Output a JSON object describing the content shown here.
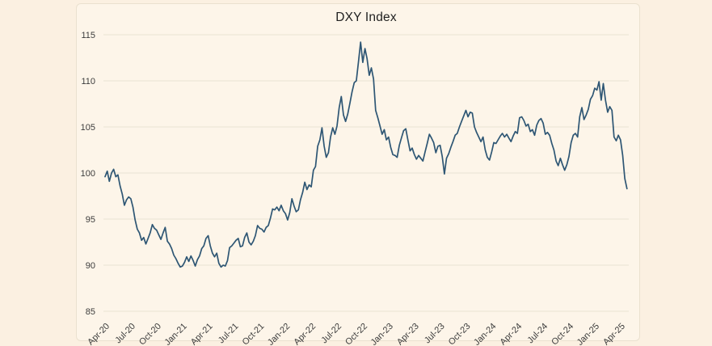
{
  "page": {
    "background_color": "#fbf0e1"
  },
  "card": {
    "background_color": "#fdf5e9",
    "border_color": "#eae1cf"
  },
  "chart_data": {
    "type": "line",
    "title": "DXY Index",
    "xlabel": "",
    "ylabel": "",
    "legend": "none",
    "grid": "horizontal-only",
    "gridline_color": "#e9e2d3",
    "tick_label_color": "#3c3c3c",
    "y_ticks": [
      85,
      90,
      95,
      100,
      105,
      110,
      115
    ],
    "ylim": [
      84.5,
      116.5
    ],
    "x_tick_labels": [
      "Apr-20",
      "Jul-20",
      "Oct-20",
      "Jan-21",
      "Apr-21",
      "Jul-21",
      "Oct-21",
      "Jan-22",
      "Apr-22",
      "Jul-22",
      "Oct-22",
      "Jan-23",
      "Apr-23",
      "Jul-23",
      "Oct-23",
      "Jan-24",
      "Apr-24",
      "Jul-24",
      "Oct-24",
      "Jan-25",
      "Apr-25"
    ],
    "x_tick_interval_months": 3,
    "series": [
      {
        "name": "DXY Index",
        "color": "#2e5674",
        "start": "Apr-2020",
        "end": "Apr-2025",
        "points_per_month": 4,
        "values": [
          99.6,
          100.2,
          99.1,
          100.0,
          100.4,
          99.6,
          99.8,
          98.6,
          97.7,
          96.5,
          97.1,
          97.4,
          97.2,
          96.3,
          94.9,
          93.9,
          93.5,
          92.7,
          93.0,
          92.3,
          92.9,
          93.5,
          94.4,
          94.0,
          93.8,
          93.3,
          92.8,
          93.5,
          94.1,
          92.6,
          92.3,
          91.8,
          91.1,
          90.7,
          90.2,
          89.8,
          89.9,
          90.3,
          90.9,
          90.4,
          91.0,
          90.5,
          89.9,
          90.6,
          91.0,
          91.8,
          92.1,
          92.9,
          93.2,
          92.1,
          91.3,
          90.9,
          91.3,
          90.2,
          89.8,
          90.0,
          89.9,
          90.5,
          91.9,
          92.1,
          92.4,
          92.7,
          92.9,
          92.0,
          92.1,
          93.0,
          93.5,
          92.5,
          92.2,
          92.6,
          93.2,
          94.3,
          94.0,
          93.9,
          93.6,
          94.1,
          94.3,
          95.1,
          96.1,
          96.0,
          96.3,
          95.9,
          96.5,
          95.9,
          95.6,
          94.9,
          95.7,
          97.2,
          96.4,
          95.8,
          96.0,
          97.1,
          97.9,
          99.0,
          98.2,
          98.7,
          98.5,
          100.3,
          100.7,
          102.9,
          103.6,
          104.9,
          102.9,
          101.7,
          102.2,
          103.9,
          104.9,
          104.2,
          105.1,
          107.1,
          108.3,
          106.3,
          105.6,
          106.4,
          107.6,
          108.8,
          109.8,
          110.0,
          112.1,
          114.2,
          112.0,
          113.5,
          112.4,
          110.6,
          111.4,
          110.2,
          106.8,
          106.0,
          105.1,
          104.2,
          104.7,
          103.6,
          103.9,
          102.8,
          102.0,
          101.9,
          101.7,
          103.0,
          103.8,
          104.6,
          104.8,
          103.6,
          102.4,
          102.7,
          102.0,
          101.5,
          101.9,
          101.6,
          101.3,
          102.3,
          103.2,
          104.2,
          103.8,
          103.3,
          102.2,
          102.9,
          103.0,
          101.8,
          99.9,
          101.6,
          102.1,
          102.8,
          103.4,
          104.1,
          104.3,
          105.0,
          105.6,
          106.2,
          106.8,
          106.1,
          106.6,
          106.5,
          105.0,
          104.4,
          103.9,
          103.4,
          103.9,
          102.5,
          101.7,
          101.4,
          102.3,
          103.3,
          103.2,
          103.6,
          104.0,
          104.3,
          103.9,
          104.2,
          103.8,
          103.4,
          104.0,
          104.5,
          104.3,
          106.0,
          106.1,
          105.7,
          105.1,
          105.3,
          104.5,
          104.7,
          104.1,
          105.2,
          105.7,
          105.9,
          105.4,
          104.2,
          104.4,
          104.1,
          103.2,
          102.5,
          101.3,
          100.8,
          101.6,
          100.9,
          100.3,
          100.9,
          101.8,
          103.3,
          104.1,
          104.3,
          103.9,
          106.1,
          107.1,
          105.8,
          106.3,
          106.9,
          108.0,
          108.4,
          109.2,
          109.0,
          109.9,
          107.9,
          109.7,
          107.9,
          106.6,
          107.2,
          106.8,
          103.9,
          103.5,
          104.1,
          103.6,
          101.9,
          99.4,
          98.3
        ]
      }
    ]
  }
}
